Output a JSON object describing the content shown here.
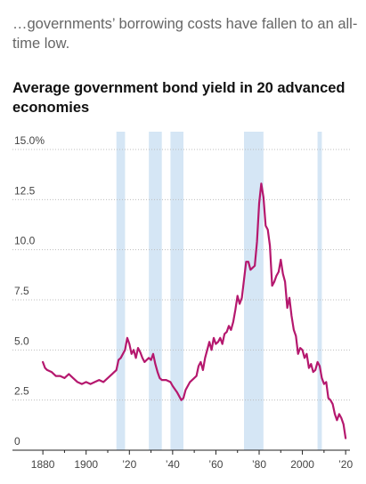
{
  "subtitle": "…governments’ borrowing costs have fallen to an all-time low.",
  "title": "Average government bond yield in 20 advanced economies",
  "chart_data": {
    "type": "line",
    "title": "Average government bond yield in 20 advanced economies",
    "xlabel": "",
    "ylabel": "",
    "xlim": [
      1875,
      2022
    ],
    "ylim": [
      0,
      15
    ],
    "y_ticks": [
      {
        "value": 15,
        "label": "15.0%"
      },
      {
        "value": 12.5,
        "label": "12.5"
      },
      {
        "value": 10,
        "label": "10.0"
      },
      {
        "value": 7.5,
        "label": "7.5"
      },
      {
        "value": 5,
        "label": "5.0"
      },
      {
        "value": 2.5,
        "label": "2.5"
      },
      {
        "value": 0,
        "label": "0"
      }
    ],
    "x_ticks": [
      {
        "value": 1880,
        "label": "1880"
      },
      {
        "value": 1900,
        "label": "1900"
      },
      {
        "value": 1920,
        "label": "’20"
      },
      {
        "value": 1940,
        "label": "’40"
      },
      {
        "value": 1960,
        "label": "’60"
      },
      {
        "value": 1980,
        "label": "’80"
      },
      {
        "value": 2000,
        "label": "2000"
      },
      {
        "value": 2020,
        "label": "’20"
      }
    ],
    "grid": true,
    "line_color": "#b5186e",
    "band_color": "#d5e6f5",
    "shaded_periods": [
      [
        1914,
        1918
      ],
      [
        1929,
        1935
      ],
      [
        1939,
        1945
      ],
      [
        1973,
        1982
      ],
      [
        2007,
        2009
      ]
    ],
    "series": [
      {
        "x": [
          1880,
          1881,
          1882,
          1884,
          1886,
          1888,
          1890,
          1892,
          1894,
          1896,
          1898,
          1900,
          1902,
          1904,
          1906,
          1908,
          1910,
          1912,
          1914,
          1915,
          1916,
          1917,
          1918,
          1919,
          1920,
          1921,
          1922,
          1923,
          1924,
          1925,
          1926,
          1927,
          1928,
          1929,
          1930,
          1931,
          1932,
          1933,
          1934,
          1935,
          1937,
          1939,
          1940,
          1942,
          1944,
          1945,
          1946,
          1948,
          1950,
          1951,
          1952,
          1953,
          1954,
          1955,
          1956,
          1957,
          1958,
          1959,
          1960,
          1961,
          1962,
          1963,
          1964,
          1965,
          1966,
          1967,
          1968,
          1969,
          1970,
          1971,
          1972,
          1973,
          1974,
          1975,
          1976,
          1977,
          1978,
          1979,
          1980,
          1981,
          1982,
          1983,
          1984,
          1985,
          1986,
          1987,
          1988,
          1989,
          1990,
          1991,
          1992,
          1993,
          1994,
          1995,
          1996,
          1997,
          1998,
          1999,
          2000,
          2001,
          2002,
          2003,
          2004,
          2005,
          2006,
          2007,
          2008,
          2009,
          2010,
          2011,
          2012,
          2013,
          2014,
          2015,
          2016,
          2017,
          2018,
          2019,
          2020
        ],
        "y": [
          4.4,
          4.1,
          4.0,
          3.9,
          3.7,
          3.7,
          3.6,
          3.8,
          3.6,
          3.4,
          3.3,
          3.4,
          3.3,
          3.4,
          3.5,
          3.4,
          3.6,
          3.8,
          4.0,
          4.5,
          4.6,
          4.8,
          5.0,
          5.6,
          5.3,
          4.8,
          5.0,
          4.6,
          5.1,
          4.9,
          4.6,
          4.4,
          4.5,
          4.6,
          4.5,
          4.8,
          4.3,
          3.9,
          3.6,
          3.5,
          3.5,
          3.4,
          3.2,
          2.9,
          2.5,
          2.6,
          3.0,
          3.4,
          3.6,
          3.7,
          4.2,
          4.4,
          4.0,
          4.6,
          5.0,
          5.4,
          5.0,
          5.6,
          5.3,
          5.4,
          5.6,
          5.3,
          5.8,
          5.9,
          6.2,
          6.0,
          6.4,
          7.0,
          7.7,
          7.3,
          7.6,
          8.5,
          9.4,
          9.4,
          9.0,
          9.1,
          9.2,
          10.4,
          12.3,
          13.3,
          12.6,
          11.2,
          11.0,
          10.2,
          8.2,
          8.4,
          8.7,
          8.9,
          9.5,
          8.8,
          8.4,
          7.1,
          7.6,
          6.7,
          6.0,
          5.7,
          4.8,
          5.1,
          5.0,
          4.6,
          4.8,
          4.1,
          4.3,
          3.9,
          4.0,
          4.4,
          4.2,
          3.6,
          3.3,
          3.4,
          2.6,
          2.5,
          2.3,
          1.8,
          1.5,
          1.8,
          1.6,
          1.3,
          0.6
        ]
      }
    ]
  }
}
